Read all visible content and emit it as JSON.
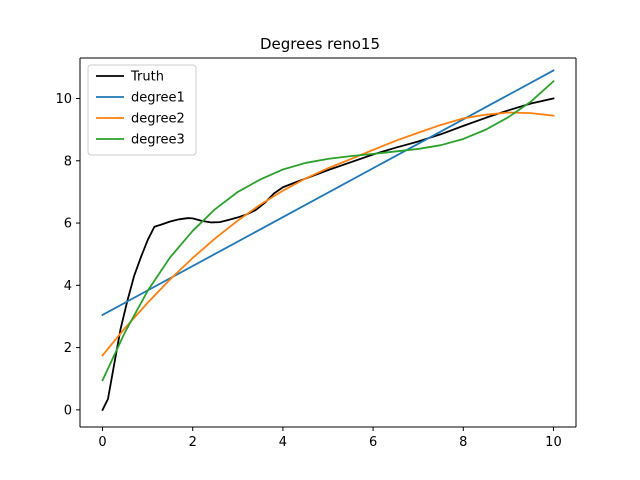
{
  "chart_data": {
    "type": "line",
    "title": "Degrees reno15",
    "xlabel": "",
    "ylabel": "",
    "xlim": [
      -0.5,
      10.5
    ],
    "ylim": [
      -0.55,
      11.3
    ],
    "xticks": [
      0,
      2,
      4,
      6,
      8,
      10
    ],
    "yticks": [
      0,
      2,
      4,
      6,
      8,
      10
    ],
    "grid": false,
    "legend_position": "top-left",
    "series": [
      {
        "name": "Truth",
        "color": "#000000",
        "x": [
          0,
          0.12,
          0.25,
          0.4,
          0.55,
          0.7,
          0.85,
          1.0,
          1.15,
          1.3,
          1.5,
          1.7,
          1.9,
          2.0,
          2.2,
          2.4,
          2.6,
          2.8,
          3.0,
          3.2,
          3.4,
          3.6,
          3.8,
          4.0,
          4.3,
          4.6,
          5.0,
          5.5,
          6.0,
          6.5,
          7.0,
          7.5,
          8.0,
          8.5,
          9.0,
          9.5,
          10.0
        ],
        "y": [
          0.0,
          0.35,
          1.4,
          2.6,
          3.5,
          4.3,
          4.9,
          5.45,
          5.88,
          5.95,
          6.05,
          6.12,
          6.16,
          6.15,
          6.07,
          6.02,
          6.03,
          6.1,
          6.18,
          6.28,
          6.42,
          6.65,
          6.95,
          7.15,
          7.32,
          7.48,
          7.7,
          7.95,
          8.2,
          8.42,
          8.62,
          8.85,
          9.12,
          9.38,
          9.62,
          9.84,
          10.0
        ]
      },
      {
        "name": "degree1",
        "color": "#1f77b4",
        "x": [
          0,
          10
        ],
        "y": [
          3.05,
          10.9
        ]
      },
      {
        "name": "degree2",
        "color": "#ff7f0e",
        "x": [
          0,
          0.5,
          1,
          1.5,
          2,
          2.5,
          3,
          3.5,
          4,
          4.5,
          5,
          5.5,
          6,
          6.5,
          7,
          7.5,
          8,
          8.5,
          9,
          9.5,
          10
        ],
        "y": [
          1.75,
          2.63,
          3.44,
          4.19,
          4.88,
          5.51,
          6.08,
          6.59,
          7.04,
          7.43,
          7.76,
          8.05,
          8.35,
          8.64,
          8.9,
          9.15,
          9.36,
          9.48,
          9.55,
          9.53,
          9.45
        ]
      },
      {
        "name": "degree3",
        "color": "#2ca02c",
        "x": [
          0,
          0.5,
          1,
          1.5,
          2,
          2.5,
          3,
          3.5,
          4,
          4.5,
          5,
          5.5,
          6,
          6.5,
          7,
          7.5,
          8,
          8.5,
          9,
          9.5,
          10
        ],
        "y": [
          0.95,
          2.5,
          3.82,
          4.9,
          5.75,
          6.45,
          7.0,
          7.4,
          7.72,
          7.93,
          8.06,
          8.15,
          8.22,
          8.3,
          8.38,
          8.5,
          8.7,
          9.0,
          9.4,
          9.9,
          10.55
        ]
      }
    ]
  }
}
